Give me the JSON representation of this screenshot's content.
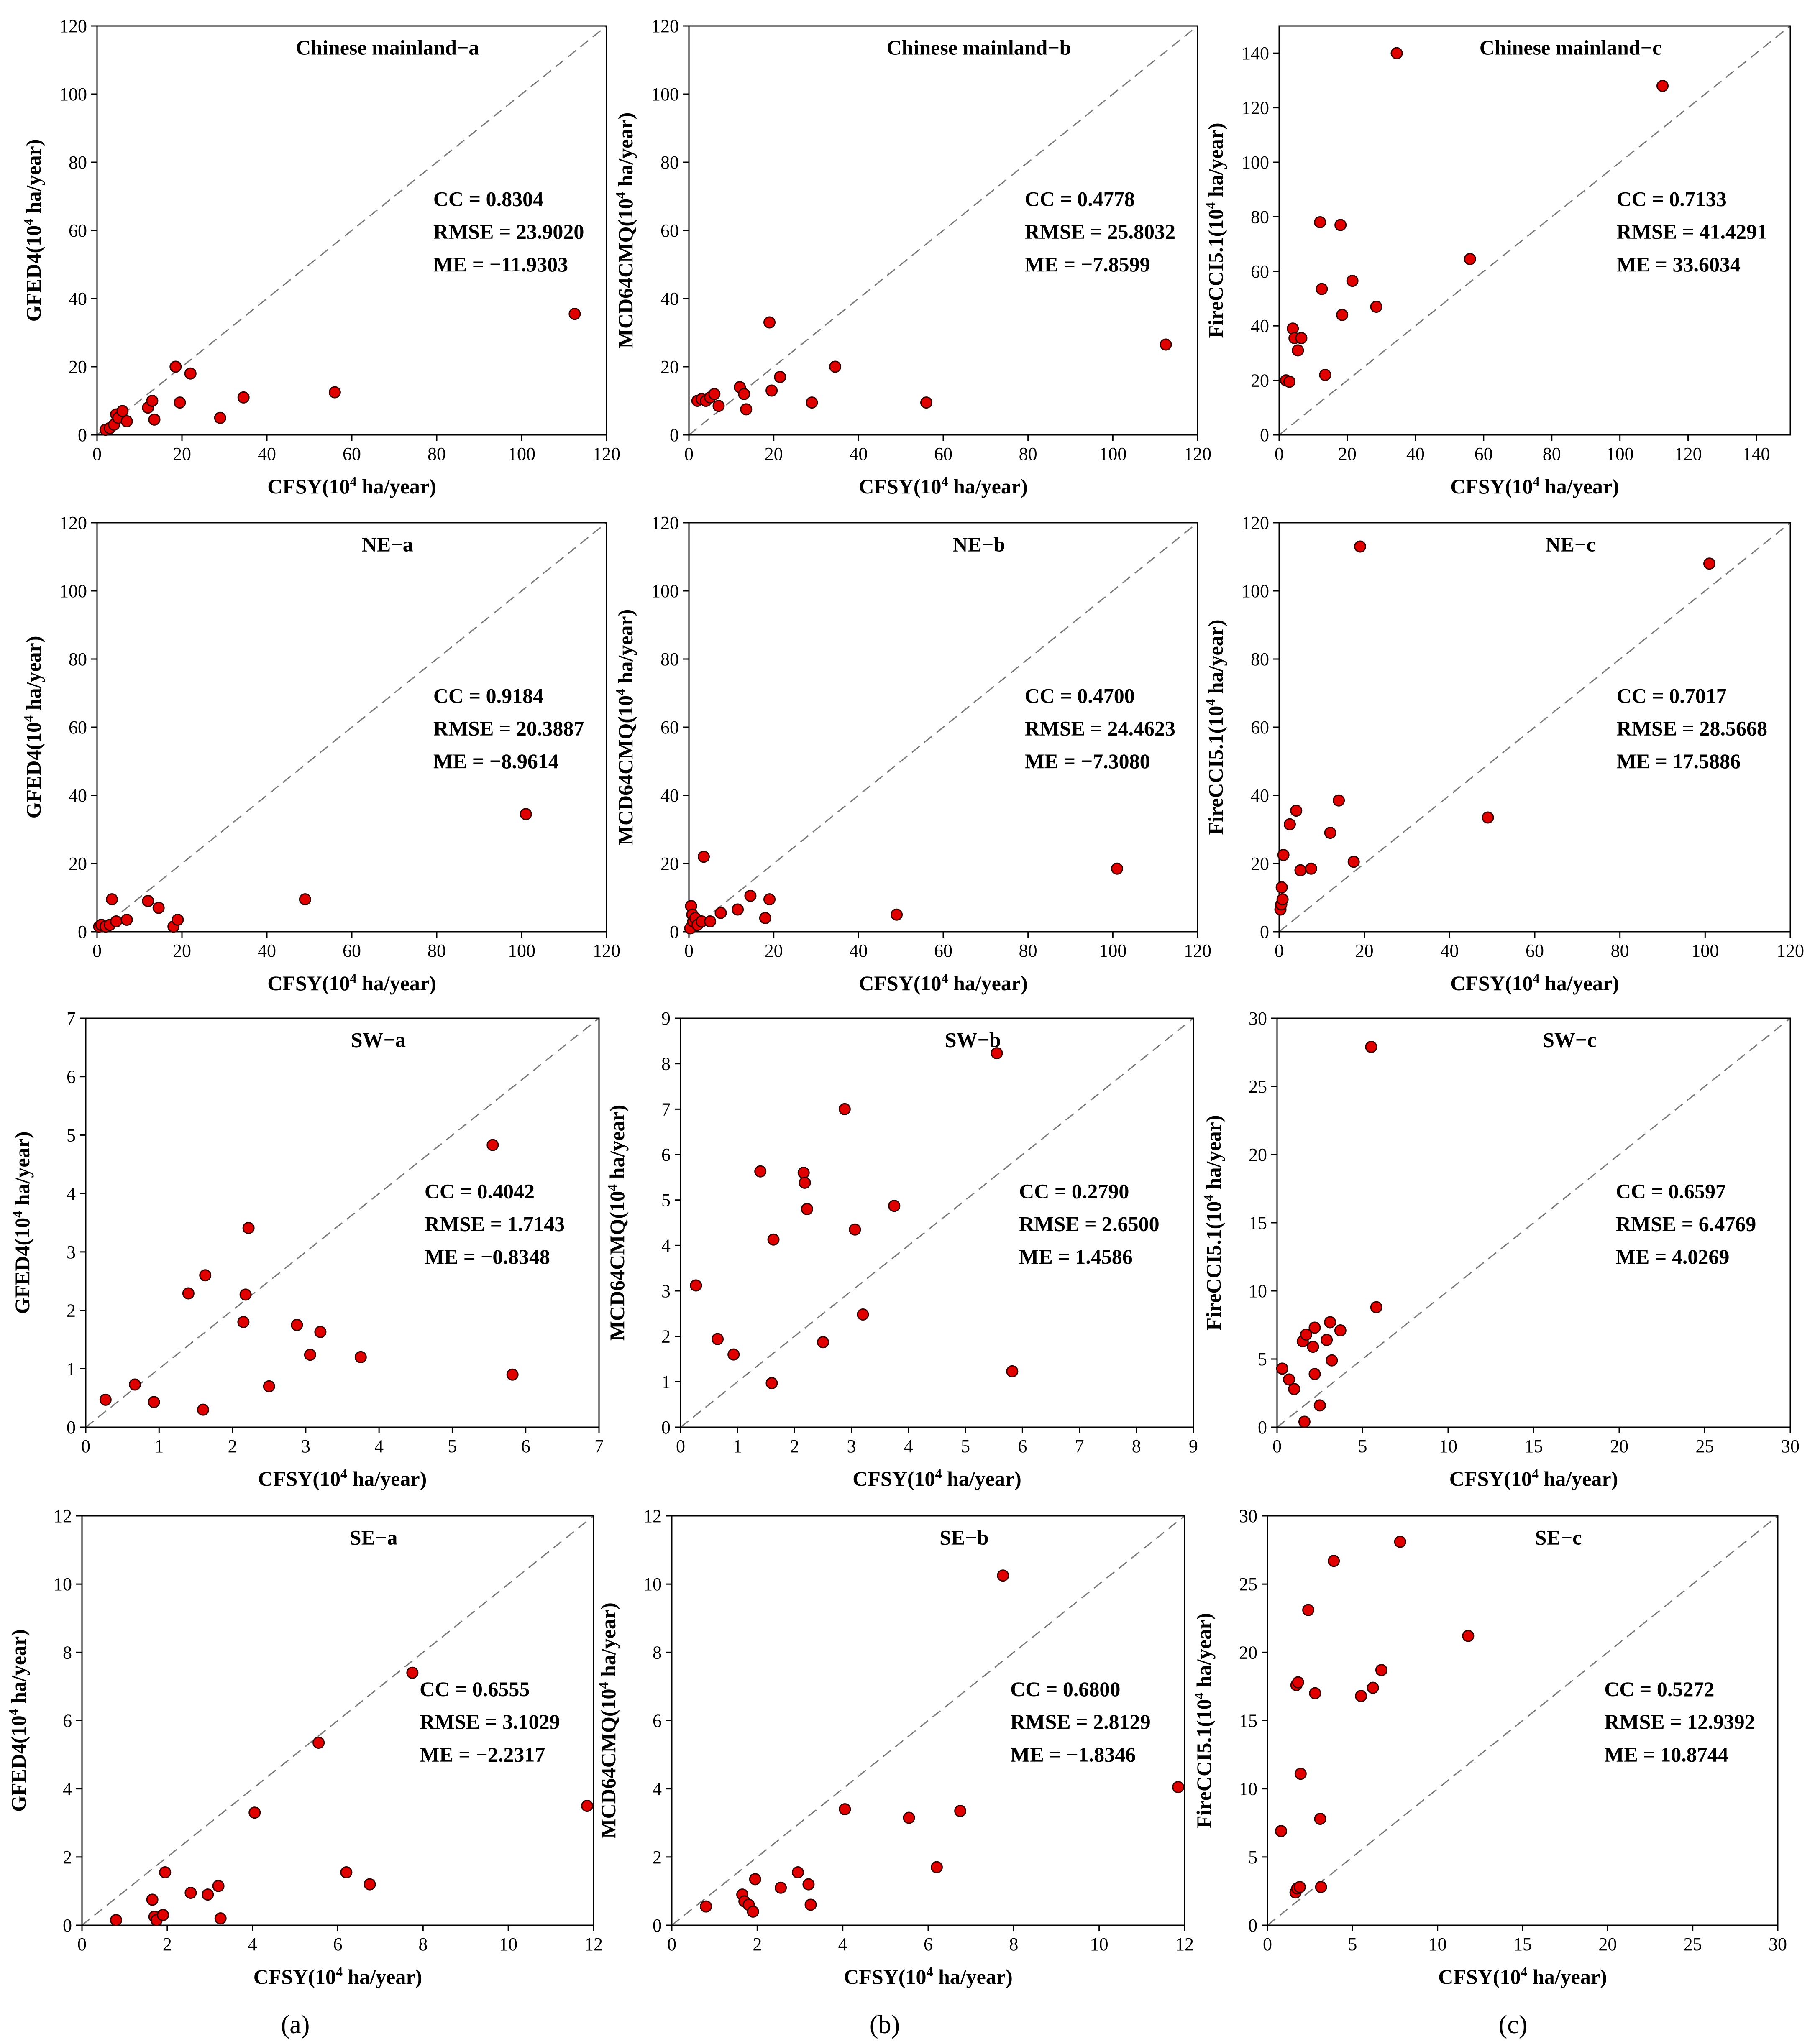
{
  "chart_data": [
    {
      "id": "cm-a",
      "type": "scatter",
      "title": "Chinese mainland−a",
      "xlabel": "CFSY(10^4 ha/year)",
      "ylabel": "GFED4(10^4 ha/year)",
      "xlim": [
        0,
        120
      ],
      "ylim": [
        0,
        120
      ],
      "xticks": [
        0,
        20,
        40,
        60,
        80,
        100,
        120
      ],
      "yticks": [
        0,
        20,
        40,
        60,
        80,
        100,
        120
      ],
      "stats": [
        "CC = 0.8304",
        "RMSE = 23.9020",
        "ME = −11.9303"
      ],
      "points": [
        [
          2,
          1.5
        ],
        [
          3,
          2
        ],
        [
          4,
          3
        ],
        [
          4.5,
          6
        ],
        [
          5,
          5
        ],
        [
          6,
          7
        ],
        [
          7,
          4
        ],
        [
          12,
          8
        ],
        [
          13,
          10
        ],
        [
          13.5,
          4.5
        ],
        [
          18.5,
          20
        ],
        [
          19.5,
          9.5
        ],
        [
          22,
          18
        ],
        [
          29,
          5
        ],
        [
          34.5,
          11
        ],
        [
          56,
          12.5
        ],
        [
          112.5,
          35.5
        ]
      ]
    },
    {
      "id": "cm-b",
      "type": "scatter",
      "title": "Chinese mainland−b",
      "xlabel": "CFSY(10^4 ha/year)",
      "ylabel": "MCD64CMQ(10^4 ha/year)",
      "xlim": [
        0,
        120
      ],
      "ylim": [
        0,
        120
      ],
      "xticks": [
        0,
        20,
        40,
        60,
        80,
        100,
        120
      ],
      "yticks": [
        0,
        20,
        40,
        60,
        80,
        100,
        120
      ],
      "stats": [
        "CC = 0.4778",
        "RMSE = 25.8032",
        "ME = −7.8599"
      ],
      "points": [
        [
          2,
          10
        ],
        [
          3,
          10.5
        ],
        [
          4,
          10
        ],
        [
          5,
          11
        ],
        [
          6,
          12
        ],
        [
          7,
          8.5
        ],
        [
          12,
          14
        ],
        [
          13,
          12
        ],
        [
          13.5,
          7.5
        ],
        [
          19,
          33
        ],
        [
          19.5,
          13
        ],
        [
          21.5,
          17
        ],
        [
          29,
          9.5
        ],
        [
          34.5,
          20
        ],
        [
          56,
          9.5
        ],
        [
          112.5,
          26.5
        ]
      ]
    },
    {
      "id": "cm-c",
      "type": "scatter",
      "title": "Chinese mainland−c",
      "xlabel": "CFSY(10^4 ha/year)",
      "ylabel": "FireCCI5.1(10^4 ha/year)",
      "xlim": [
        0,
        150
      ],
      "ylim": [
        0,
        150
      ],
      "xticks": [
        0,
        20,
        40,
        60,
        80,
        100,
        120,
        140
      ],
      "yticks": [
        0,
        20,
        40,
        60,
        80,
        100,
        120,
        140
      ],
      "stats": [
        "CC = 0.7133",
        "RMSE = 41.4291",
        "ME = 33.6034"
      ],
      "legend_marker_point": [
        34.5,
        140
      ],
      "points": [
        [
          2,
          20
        ],
        [
          3,
          19.5
        ],
        [
          4,
          39
        ],
        [
          4.5,
          35.5
        ],
        [
          5.5,
          31
        ],
        [
          6.5,
          35.5
        ],
        [
          12,
          78
        ],
        [
          12.5,
          53.5
        ],
        [
          13.5,
          22
        ],
        [
          18,
          77
        ],
        [
          18.5,
          44
        ],
        [
          21.5,
          56.5
        ],
        [
          28.5,
          47
        ],
        [
          56,
          64.5
        ],
        [
          112.5,
          128
        ]
      ]
    },
    {
      "id": "ne-a",
      "type": "scatter",
      "title": "NE−a",
      "xlabel": "CFSY(10^4 ha/year)",
      "ylabel": "GFED4(10^4 ha/year)",
      "xlim": [
        0,
        120
      ],
      "ylim": [
        0,
        120
      ],
      "xticks": [
        0,
        20,
        40,
        60,
        80,
        100,
        120
      ],
      "yticks": [
        0,
        20,
        40,
        60,
        80,
        100,
        120
      ],
      "stats": [
        "CC = 0.9184",
        "RMSE = 20.3887",
        "ME = −8.9614"
      ],
      "points": [
        [
          0.5,
          1.5
        ],
        [
          1,
          2
        ],
        [
          2,
          1.5
        ],
        [
          3,
          2
        ],
        [
          3.5,
          9.5
        ],
        [
          4.5,
          3
        ],
        [
          7,
          3.5
        ],
        [
          12,
          9
        ],
        [
          14.5,
          7
        ],
        [
          18,
          1.5
        ],
        [
          19,
          3.5
        ],
        [
          49,
          9.5
        ],
        [
          101,
          34.5
        ]
      ]
    },
    {
      "id": "ne-b",
      "type": "scatter",
      "title": "NE−b",
      "xlabel": "CFSY(10^4 ha/year)",
      "ylabel": "MCD64CMQ(10^4 ha/year)",
      "xlim": [
        0,
        120
      ],
      "ylim": [
        0,
        120
      ],
      "xticks": [
        0,
        20,
        40,
        60,
        80,
        100,
        120
      ],
      "yticks": [
        0,
        20,
        40,
        60,
        80,
        100,
        120
      ],
      "stats": [
        "CC = 0.4700",
        "RMSE = 24.4623",
        "ME = −7.3080"
      ],
      "points": [
        [
          0.3,
          1
        ],
        [
          0.5,
          7.5
        ],
        [
          0.8,
          5
        ],
        [
          1,
          3
        ],
        [
          1.5,
          4
        ],
        [
          2,
          2
        ],
        [
          3,
          3
        ],
        [
          3.5,
          22
        ],
        [
          5,
          3
        ],
        [
          7.5,
          5.5
        ],
        [
          11.5,
          6.5
        ],
        [
          14.5,
          10.5
        ],
        [
          18,
          4
        ],
        [
          19,
          9.5
        ],
        [
          49,
          5
        ],
        [
          101,
          18.5
        ]
      ]
    },
    {
      "id": "ne-c",
      "type": "scatter",
      "title": "NE−c",
      "xlabel": "CFSY(10^4 ha/year)",
      "ylabel": "FireCCI5.1(10^4 ha/year)",
      "xlim": [
        0,
        120
      ],
      "ylim": [
        0,
        120
      ],
      "xticks": [
        0,
        20,
        40,
        60,
        80,
        100,
        120
      ],
      "yticks": [
        0,
        20,
        40,
        60,
        80,
        100,
        120
      ],
      "stats": [
        "CC = 0.7017",
        "RMSE = 28.5668",
        "ME = 17.5886"
      ],
      "points": [
        [
          0.3,
          6.5
        ],
        [
          0.5,
          8
        ],
        [
          0.6,
          13
        ],
        [
          0.8,
          9.5
        ],
        [
          1,
          22.5
        ],
        [
          2.5,
          31.5
        ],
        [
          4,
          35.5
        ],
        [
          5,
          18
        ],
        [
          7.5,
          18.5
        ],
        [
          12,
          29
        ],
        [
          14,
          38.5
        ],
        [
          17.5,
          20.5
        ],
        [
          19,
          113
        ],
        [
          49,
          33.5
        ],
        [
          101,
          108
        ]
      ]
    },
    {
      "id": "sw-a",
      "type": "scatter",
      "title": "SW−a",
      "xlabel": "CFSY(10^4 ha/year)",
      "ylabel": "GFED4(10^4 ha/year)",
      "xlim": [
        0,
        7
      ],
      "ylim": [
        0,
        7
      ],
      "xticks": [
        0,
        1,
        2,
        3,
        4,
        5,
        6,
        7
      ],
      "yticks": [
        0,
        1,
        2,
        3,
        4,
        5,
        6,
        7
      ],
      "stats": [
        "CC = 0.4042",
        "RMSE = 1.7143",
        "ME = −0.8348"
      ],
      "points": [
        [
          0.27,
          0.47
        ],
        [
          0.67,
          0.73
        ],
        [
          0.93,
          0.43
        ],
        [
          1.4,
          2.29
        ],
        [
          1.6,
          0.3
        ],
        [
          1.63,
          2.6
        ],
        [
          2.15,
          1.8
        ],
        [
          2.18,
          2.27
        ],
        [
          2.22,
          3.41
        ],
        [
          2.5,
          0.7
        ],
        [
          2.88,
          1.75
        ],
        [
          3.06,
          1.24
        ],
        [
          3.2,
          1.63
        ],
        [
          3.75,
          1.2
        ],
        [
          5.55,
          4.83
        ],
        [
          5.82,
          0.9
        ]
      ]
    },
    {
      "id": "sw-b",
      "type": "scatter",
      "title": "SW−b",
      "xlabel": "CFSY(10^4 ha/year)",
      "ylabel": "MCD64CMQ(10^4 ha/year)",
      "xlim": [
        0,
        9
      ],
      "ylim": [
        0,
        9
      ],
      "xticks": [
        0,
        1,
        2,
        3,
        4,
        5,
        6,
        7,
        8,
        9
      ],
      "yticks": [
        0,
        1,
        2,
        3,
        4,
        5,
        6,
        7,
        8,
        9
      ],
      "stats": [
        "CC = 0.2790",
        "RMSE = 2.6500",
        "ME = 1.4586"
      ],
      "points": [
        [
          0.27,
          3.12
        ],
        [
          0.65,
          1.94
        ],
        [
          0.93,
          1.6
        ],
        [
          1.4,
          5.63
        ],
        [
          1.6,
          0.97
        ],
        [
          1.63,
          4.13
        ],
        [
          2.16,
          5.6
        ],
        [
          2.18,
          5.38
        ],
        [
          2.22,
          4.8
        ],
        [
          2.5,
          1.87
        ],
        [
          2.88,
          7
        ],
        [
          3.06,
          4.35
        ],
        [
          3.2,
          2.48
        ],
        [
          3.75,
          4.87
        ],
        [
          5.55,
          8.23
        ],
        [
          5.82,
          1.23
        ]
      ]
    },
    {
      "id": "sw-c",
      "type": "scatter",
      "title": "SW−c",
      "xlabel": "CFSY(10^4 ha/year)",
      "ylabel": "FireCCI5.1(10^4 ha/year)",
      "xlim": [
        0,
        30
      ],
      "ylim": [
        0,
        30
      ],
      "xticks": [
        0,
        5,
        10,
        15,
        20,
        25,
        30
      ],
      "yticks": [
        0,
        5,
        10,
        15,
        20,
        25,
        30
      ],
      "stats": [
        "CC = 0.6597",
        "RMSE = 6.4769",
        "ME = 4.0269"
      ],
      "points": [
        [
          0.3,
          4.3
        ],
        [
          0.7,
          3.5
        ],
        [
          1,
          2.8
        ],
        [
          1.5,
          6.3
        ],
        [
          1.6,
          0.4
        ],
        [
          1.7,
          6.8
        ],
        [
          2.1,
          5.9
        ],
        [
          2.2,
          7.3
        ],
        [
          2.2,
          3.9
        ],
        [
          2.5,
          1.6
        ],
        [
          2.9,
          6.4
        ],
        [
          3.1,
          7.7
        ],
        [
          3.2,
          4.9
        ],
        [
          3.7,
          7.1
        ],
        [
          5.5,
          27.9
        ],
        [
          5.8,
          8.8
        ]
      ]
    },
    {
      "id": "se-a",
      "type": "scatter",
      "title": "SE−a",
      "xlabel": "CFSY(10^4 ha/year)",
      "ylabel": "GFED4(10^4 ha/year)",
      "xlim": [
        0,
        12
      ],
      "ylim": [
        0,
        12
      ],
      "xticks": [
        0,
        2,
        4,
        6,
        8,
        10,
        12
      ],
      "yticks": [
        0,
        2,
        4,
        6,
        8,
        10,
        12
      ],
      "stats": [
        "CC = 0.6555",
        "RMSE = 3.1029",
        "ME = −2.2317"
      ],
      "points": [
        [
          0.8,
          0.15
        ],
        [
          1.65,
          0.75
        ],
        [
          1.7,
          0.25
        ],
        [
          1.75,
          0.15
        ],
        [
          1.9,
          0.3
        ],
        [
          1.95,
          1.55
        ],
        [
          2.55,
          0.95
        ],
        [
          2.95,
          0.9
        ],
        [
          3.2,
          1.15
        ],
        [
          3.25,
          0.2
        ],
        [
          4.05,
          3.3
        ],
        [
          5.55,
          5.35
        ],
        [
          6.2,
          1.55
        ],
        [
          6.75,
          1.2
        ],
        [
          7.75,
          7.4
        ],
        [
          11.85,
          3.5
        ]
      ]
    },
    {
      "id": "se-b",
      "type": "scatter",
      "title": "SE−b",
      "xlabel": "CFSY(10^4 ha/year)",
      "ylabel": "MCD64CMQ(10^4 ha/year)",
      "xlim": [
        0,
        12
      ],
      "ylim": [
        0,
        12
      ],
      "xticks": [
        0,
        2,
        4,
        6,
        8,
        10,
        12
      ],
      "yticks": [
        0,
        2,
        4,
        6,
        8,
        10,
        12
      ],
      "stats": [
        "CC = 0.6800",
        "RMSE = 2.8129",
        "ME = −1.8346"
      ],
      "points": [
        [
          0.8,
          0.55
        ],
        [
          1.65,
          0.9
        ],
        [
          1.7,
          0.7
        ],
        [
          1.8,
          0.6
        ],
        [
          1.9,
          0.4
        ],
        [
          1.95,
          1.35
        ],
        [
          2.55,
          1.1
        ],
        [
          2.95,
          1.55
        ],
        [
          3.2,
          1.2
        ],
        [
          3.25,
          0.6
        ],
        [
          4.05,
          3.4
        ],
        [
          5.55,
          3.15
        ],
        [
          6.2,
          1.7
        ],
        [
          6.75,
          3.35
        ],
        [
          7.75,
          10.25
        ],
        [
          11.85,
          4.05
        ]
      ]
    },
    {
      "id": "se-c",
      "type": "scatter",
      "title": "SE−c",
      "xlabel": "CFSY(10^4 ha/year)",
      "ylabel": "FireCCI5.1(10^4 ha/year)",
      "xlim": [
        0,
        30
      ],
      "ylim": [
        0,
        30
      ],
      "xticks": [
        0,
        5,
        10,
        15,
        20,
        25,
        30
      ],
      "yticks": [
        0,
        5,
        10,
        15,
        20,
        25,
        30
      ],
      "stats": [
        "CC = 0.5272",
        "RMSE = 12.9392",
        "ME = 10.8744"
      ],
      "points": [
        [
          0.8,
          6.9
        ],
        [
          1.65,
          2.4
        ],
        [
          1.7,
          17.6
        ],
        [
          1.75,
          2.7
        ],
        [
          1.8,
          17.8
        ],
        [
          1.9,
          2.8
        ],
        [
          1.95,
          11.1
        ],
        [
          2.4,
          23.1
        ],
        [
          2.8,
          17
        ],
        [
          3.1,
          7.8
        ],
        [
          3.15,
          2.8
        ],
        [
          3.9,
          26.7
        ],
        [
          5.5,
          16.8
        ],
        [
          6.2,
          17.4
        ],
        [
          6.7,
          18.7
        ],
        [
          7.8,
          28.1
        ],
        [
          11.8,
          21.2
        ]
      ]
    }
  ],
  "captions": {
    "a": "(a)",
    "b": "(b)",
    "c": "(c)"
  }
}
